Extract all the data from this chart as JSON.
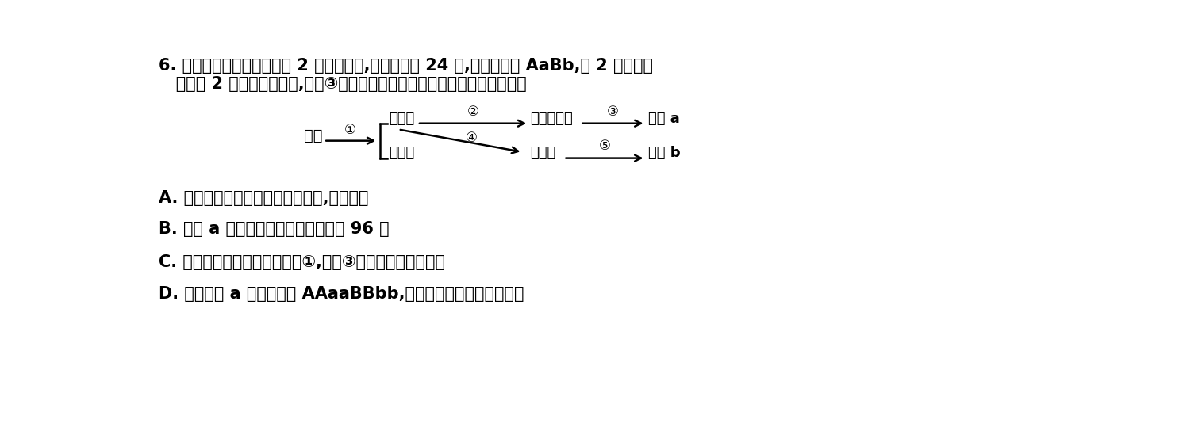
{
  "title_line1": "6. 如图所示植物花粉粒中有 2 个染色体组,染色体数为 24 条,基因组成为 AaBb,这 2 对基因分",
  "title_line2": "   别位于 2 对同源染色体上,过程③是用秋水仙紫处理幼苗。下列说法错误的是",
  "options": [
    "A. 图中单倍体幼苗不含同源染色体,高度不育",
    "B. 个体 a 的细胞中染色体数目最多是 96 条",
    "C. 图中发生基因重组的过程是①,过程③中发生了染色体变异",
    "D. 图中个体 a 的基因型为 AAaaBBbb,体细胞中含有四个染色体组"
  ],
  "node_plant": "植物",
  "node_pollen": "花粉粒",
  "node_egg": "卵细胞",
  "node_haploid": "单倍体幼苗",
  "node_zygote": "受精卵",
  "node_a": "个体 a",
  "node_b": "个体 b",
  "bg_color": "#ffffff",
  "text_color": "#000000"
}
